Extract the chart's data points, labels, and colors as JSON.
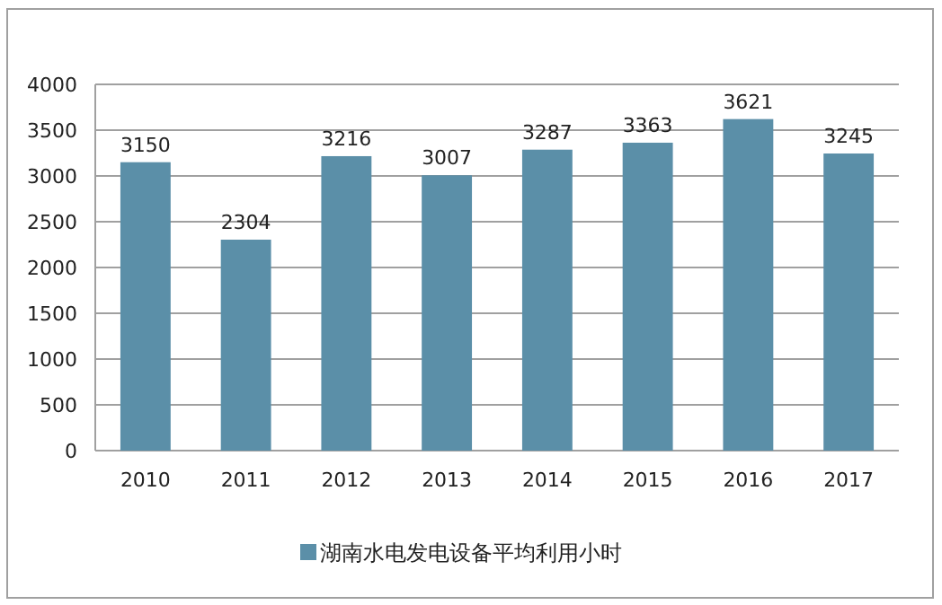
{
  "chart_data": {
    "type": "bar",
    "categories": [
      "2010",
      "2011",
      "2012",
      "2013",
      "2014",
      "2015",
      "2016",
      "2017"
    ],
    "series": [
      {
        "name": "湖南水电发电设备平均利用小时",
        "color": "#5b8fa8",
        "values": [
          3150,
          2304,
          3216,
          3007,
          3287,
          3363,
          3621,
          3245
        ]
      }
    ],
    "ylim": [
      0,
      4000
    ],
    "yticks": [
      0,
      500,
      1000,
      1500,
      2000,
      2500,
      3000,
      3500,
      4000
    ],
    "grid": "y",
    "legend": "bottom",
    "data_labels": true
  }
}
